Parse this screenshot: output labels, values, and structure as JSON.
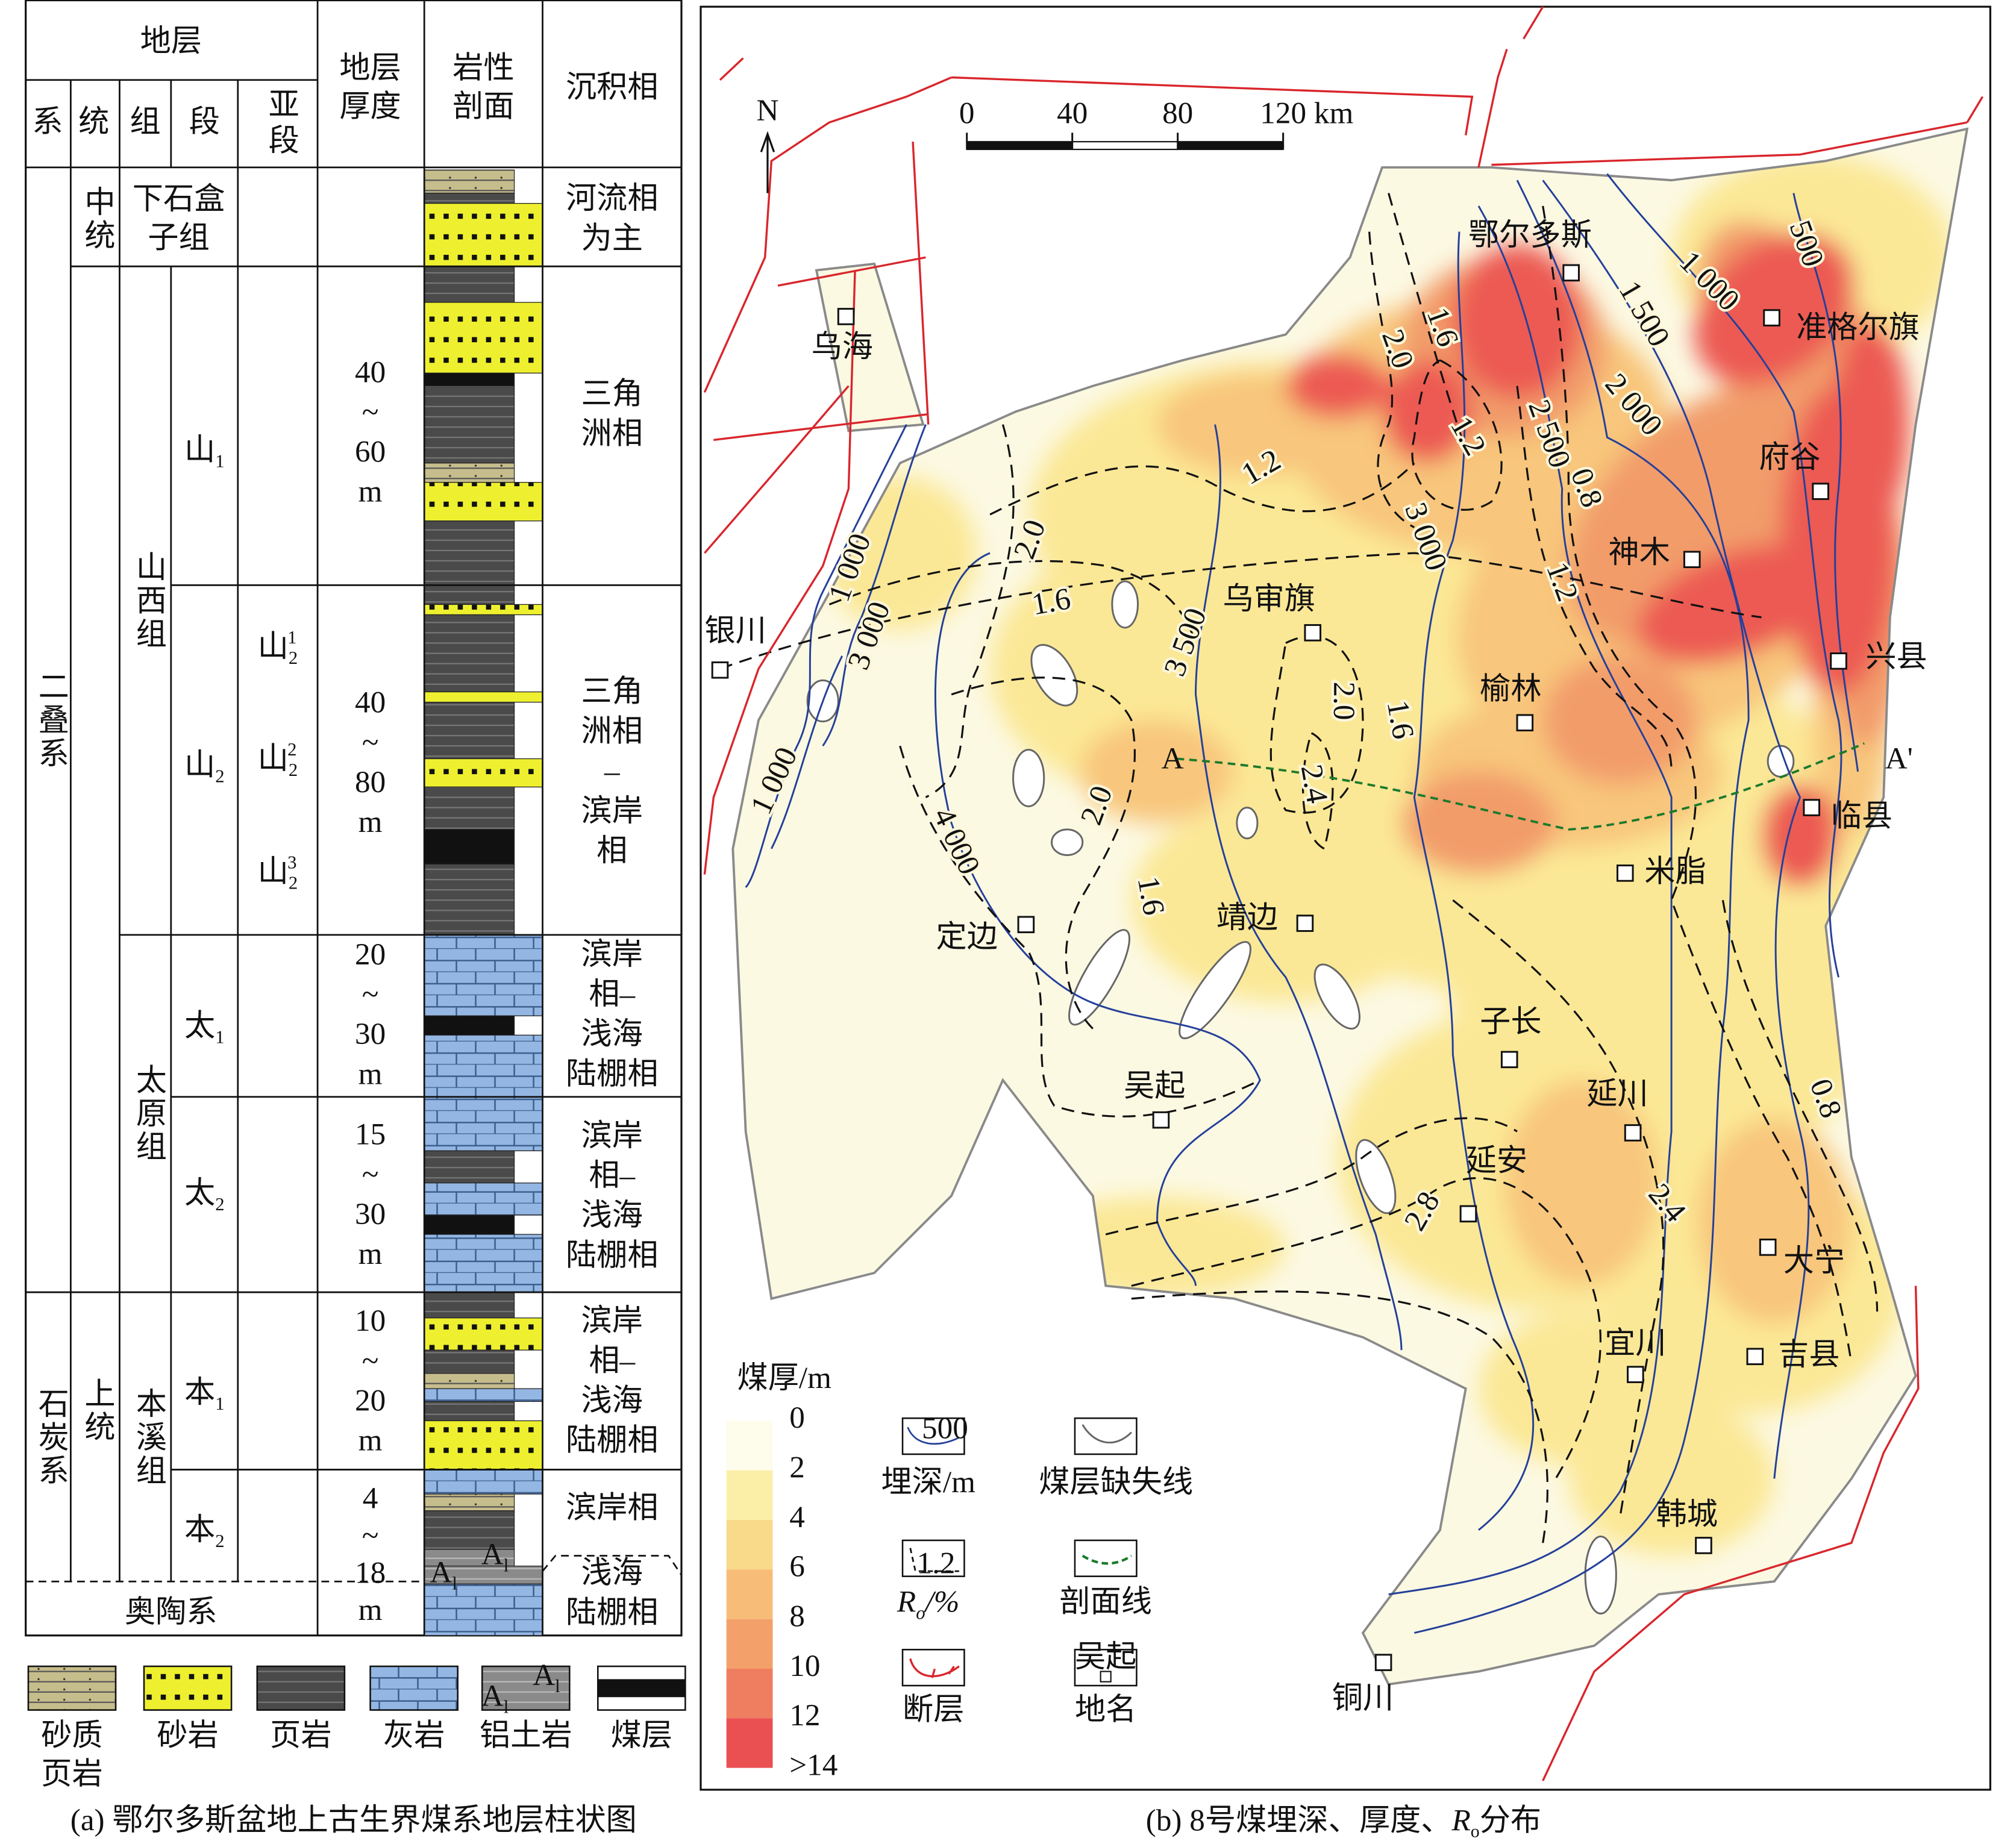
{
  "panel_a": {
    "caption": "(a) 鄂尔多斯盆地上古生界煤系地层柱状图",
    "headers": {
      "strata": "地层",
      "system": "系",
      "series": "统",
      "formation": "组",
      "member": "段",
      "submember": "亚段",
      "thickness": [
        "地层",
        "厚度"
      ],
      "lithology": [
        "岩性",
        "剖面"
      ],
      "facies": "沉积相"
    },
    "systems": [
      "二叠系",
      "石炭系"
    ],
    "series": [
      "中统",
      "上统"
    ],
    "formations": [
      [
        "下石盒",
        "子组"
      ],
      [
        "山西组"
      ],
      [
        "太原组"
      ],
      [
        "本溪组"
      ]
    ],
    "members": [
      {
        "text": "山",
        "sub": "1"
      },
      {
        "text": "山",
        "sub": "2"
      },
      {
        "text": "太",
        "sub": "1"
      },
      {
        "text": "太",
        "sub": "2"
      },
      {
        "text": "本",
        "sub": "1"
      },
      {
        "text": "本",
        "sub": "2"
      }
    ],
    "submembers": [
      {
        "text": "山",
        "sub": "2",
        "sup": "1"
      },
      {
        "text": "山",
        "sub": "2",
        "sup": "2"
      },
      {
        "text": "山",
        "sub": "2",
        "sup": "3"
      }
    ],
    "thickness": [
      [
        "40",
        "~",
        "60",
        "m"
      ],
      [
        "40",
        "~",
        "80",
        "m"
      ],
      [
        "20",
        "~",
        "30",
        "m"
      ],
      [
        "15",
        "~",
        "30",
        "m"
      ],
      [
        "10",
        "~",
        "20",
        "m"
      ],
      [
        "4",
        "~",
        "18",
        "m"
      ]
    ],
    "facies": [
      [
        "河流相",
        "为主"
      ],
      [
        "三角",
        "洲相"
      ],
      [
        "三角",
        "洲相",
        "–",
        "滨岸",
        "相"
      ],
      [
        "滨岸",
        "相–",
        "浅海",
        "陆棚相"
      ],
      [
        "滨岸",
        "相–",
        "浅海",
        "陆棚相"
      ],
      [
        "滨岸",
        "相–",
        "浅海",
        "陆棚相"
      ],
      [
        "滨岸相"
      ],
      [
        "浅海",
        "陆棚相"
      ]
    ],
    "base": "奥陶系",
    "bauxite_mark": {
      "text": "A",
      "sub": "l"
    },
    "legend": [
      [
        "砂质",
        "页岩"
      ],
      [
        "砂岩"
      ],
      [
        "页岩"
      ],
      [
        "灰岩"
      ],
      [
        "铝土岩"
      ],
      [
        "煤层"
      ]
    ]
  },
  "panel_b": {
    "caption": {
      "prefix": "(b) 8号煤埋深、厚度、",
      "r": "R",
      "sub": "o",
      "suffix": "分布"
    },
    "north": "N",
    "scale": [
      "0",
      "40",
      "80",
      "120 km"
    ],
    "places": [
      "鄂尔多斯",
      "准格尔旗",
      "乌海",
      "府谷",
      "神木",
      "乌审旗",
      "银川",
      "兴县",
      "榆林",
      "临县",
      "米脂",
      "定边",
      "靖边",
      "子长",
      "吴起",
      "延川",
      "延安",
      "大宁",
      "宜川",
      "吉县",
      "韩城",
      "铜川"
    ],
    "depth_labels": [
      "500",
      "1 000",
      "1 500",
      "2 000",
      "2 500",
      "3 000",
      "3 500",
      "4 000",
      "1 000",
      "3 000",
      "1 000"
    ],
    "ro_labels": [
      "1.6",
      "2.0",
      "1.2",
      "1.2",
      "0.8",
      "1.2",
      "2.0",
      "1.6",
      "2.0",
      "2.4",
      "1.6",
      "2.0",
      "1.6",
      "0.8",
      "2.4",
      "2.8"
    ],
    "section": [
      "A",
      "A'"
    ],
    "legend": {
      "thickness_title": "煤厚/m",
      "thickness_ticks": [
        "0",
        "2",
        "4",
        "6",
        "8",
        "10",
        "12",
        ">14"
      ],
      "depth": {
        "label": "埋深/m",
        "icon": "500"
      },
      "missing": {
        "label": "煤层缺失线"
      },
      "ro": {
        "r": "R",
        "sub": "o",
        "suffix": "/%",
        "icon": "1.2"
      },
      "section": {
        "label": "剖面线"
      },
      "fault": {
        "label": "断层"
      },
      "place": {
        "label": "地名",
        "icon": "吴起"
      }
    }
  }
}
